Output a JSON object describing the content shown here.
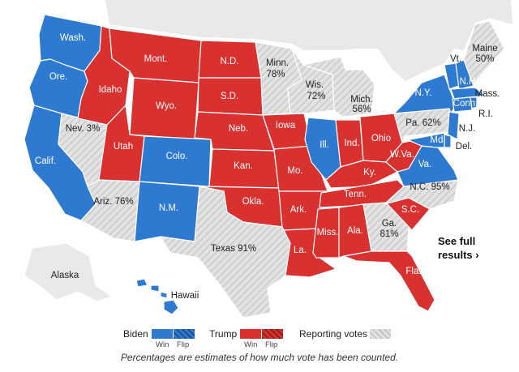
{
  "map": {
    "states": {
      "wa": {
        "label": "Wash."
      },
      "or": {
        "label": "Ore."
      },
      "ca": {
        "label": "Calif."
      },
      "nv": {
        "label": "Nev. 3%"
      },
      "id": {
        "label": "Idaho"
      },
      "mt": {
        "label": "Mont."
      },
      "wy": {
        "label": "Wyo."
      },
      "ut": {
        "label": "Utah"
      },
      "co": {
        "label": "Colo."
      },
      "az": {
        "label": "Ariz. 76%"
      },
      "nm": {
        "label": "N.M."
      },
      "nd": {
        "label": "N.D."
      },
      "sd": {
        "label": "S.D."
      },
      "ne": {
        "label": "Neb."
      },
      "ks": {
        "label": "Kan."
      },
      "ok": {
        "label": "Okla."
      },
      "tx": {
        "label": "Texas 91%"
      },
      "mn_name": {
        "label": "Minn."
      },
      "mn_pct": {
        "label": "78%"
      },
      "ia": {
        "label": "Iowa"
      },
      "mo": {
        "label": "Mo."
      },
      "ar": {
        "label": "Ark."
      },
      "la": {
        "label": "La."
      },
      "wi_name": {
        "label": "Wis."
      },
      "wi_pct": {
        "label": "72%"
      },
      "il": {
        "label": "Ill."
      },
      "mi_name": {
        "label": "Mich."
      },
      "mi_pct": {
        "label": "56%"
      },
      "in": {
        "label": "Ind."
      },
      "oh": {
        "label": "Ohio"
      },
      "ky": {
        "label": "Ky."
      },
      "tn": {
        "label": "Tenn."
      },
      "ms": {
        "label": "Miss."
      },
      "al": {
        "label": "Ala."
      },
      "ga_name": {
        "label": "Ga."
      },
      "ga_pct": {
        "label": "81%"
      },
      "fl": {
        "label": "Fla."
      },
      "sc": {
        "label": "S.C."
      },
      "nc": {
        "label": "N.C. 95%"
      },
      "va": {
        "label": "Va."
      },
      "wv": {
        "label": "W.Va."
      },
      "pa": {
        "label": "Pa. 62%"
      },
      "ny": {
        "label": "N.Y."
      },
      "vt": {
        "label": "Vt."
      },
      "nh": {
        "label": "N.H."
      },
      "me_name": {
        "label": "Maine"
      },
      "me_pct": {
        "label": "50%"
      },
      "ma": {
        "label": "Mass."
      },
      "ct": {
        "label": "Conn."
      },
      "ri": {
        "label": "R.I."
      },
      "nj": {
        "label": "N.J."
      },
      "de": {
        "label": "Del."
      },
      "md": {
        "label": "Md."
      },
      "ak": {
        "label": "Alaska"
      },
      "hi": {
        "label": "Hawaii"
      }
    }
  },
  "cta": {
    "line1": "See full",
    "line2": "results ›"
  },
  "legend": {
    "biden": {
      "name": "Biden",
      "win": "Win",
      "flip": "Flip"
    },
    "trump": {
      "name": "Trump",
      "win": "Win",
      "flip": "Flip"
    },
    "reporting": {
      "name": "Reporting votes"
    }
  },
  "colors": {
    "biden": "#2f7ad1",
    "trump": "#d8312f",
    "reporting": "#c8c8c8"
  },
  "note": "Percentages are estimates of how much vote has been counted."
}
